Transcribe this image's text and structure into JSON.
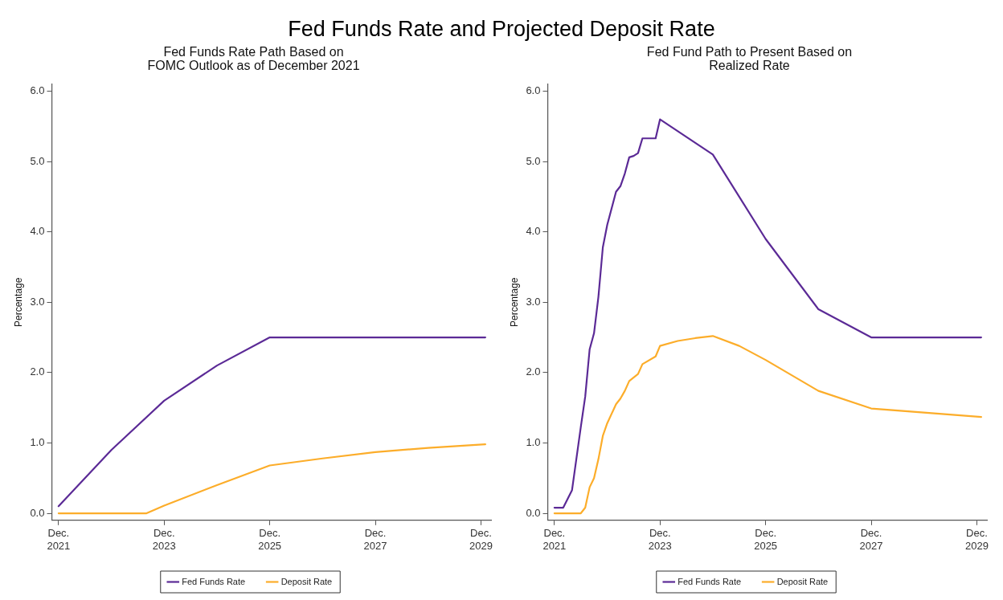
{
  "chart_data": [
    {
      "type": "line",
      "title": "Fed Funds Rate and Projected Deposit Rate",
      "subtitle": "Fed Funds Rate Path Based on FOMC Outlook as of December 2021",
      "ylabel": "Percentage",
      "series": [
        {
          "name": "Fed Funds Rate",
          "color": "#5b2a96",
          "x": [
            "2021-12",
            "2022-12",
            "2023-12",
            "2024-12",
            "2025-12",
            "2030-01"
          ],
          "values": [
            0.1,
            0.9,
            1.6,
            2.1,
            2.5,
            2.5
          ]
        },
        {
          "name": "Deposit Rate",
          "color": "#fcad2a",
          "x": [
            "2021-12",
            "2023-08",
            "2023-12",
            "2024-12",
            "2025-12",
            "2026-12",
            "2027-12",
            "2028-12",
            "2030-01"
          ],
          "values": [
            0,
            0,
            0.11,
            0.4,
            0.68,
            0.78,
            0.87,
            0.93,
            0.98
          ]
        }
      ],
      "xlim": [
        "2021-10-15",
        "2030-02-10"
      ],
      "xticks": [
        {
          "value": "2021-12",
          "label": "Dec. 2021"
        },
        {
          "value": "2023-12",
          "label": "Dec. 2023"
        },
        {
          "value": "2025-12",
          "label": "Dec. 2025"
        },
        {
          "value": "2027-12",
          "label": "Dec. 2027"
        },
        {
          "value": "2029-12",
          "label": "Dec. 2029"
        }
      ],
      "ylim": [
        -0.1,
        6.1
      ],
      "yticks": [
        {
          "value": 0,
          "label": "0.0"
        },
        {
          "value": 1,
          "label": "1.0"
        },
        {
          "value": 2,
          "label": "2.0"
        },
        {
          "value": 3,
          "label": "3.0"
        },
        {
          "value": 4,
          "label": "4.0"
        },
        {
          "value": 5,
          "label": "5.0"
        },
        {
          "value": 6,
          "label": "6.0"
        }
      ],
      "grid": false,
      "legend": "bottom",
      "marker": "none",
      "line_style": "solid"
    },
    {
      "type": "line",
      "subtitle": "Fed Fund Path to Present Based on Realized Rate",
      "ylabel": "Percentage",
      "series": [
        {
          "name": "Fed Funds Rate",
          "color": "#5b2a96",
          "x": [
            "2021-12",
            "2022-02",
            "2022-04",
            "2022-06",
            "2022-07",
            "2022-08",
            "2022-09",
            "2022-10",
            "2022-11",
            "2022-12",
            "2023-02",
            "2023-03",
            "2023-04",
            "2023-05",
            "2023-06",
            "2023-07",
            "2023-08",
            "2023-11",
            "2023-12",
            "2024-12",
            "2025-12",
            "2026-12",
            "2027-12",
            "2030-01"
          ],
          "values": [
            0.08,
            0.08,
            0.33,
            1.23,
            1.66,
            2.33,
            2.56,
            3.08,
            3.78,
            4.1,
            4.57,
            4.65,
            4.83,
            5.06,
            5.08,
            5.12,
            5.33,
            5.33,
            5.6,
            5.1,
            3.9,
            2.9,
            2.5,
            2.5
          ]
        },
        {
          "name": "Deposit Rate",
          "color": "#fcad2a",
          "x": [
            "2021-12",
            "2022-06",
            "2022-07",
            "2022-08",
            "2022-09",
            "2022-10",
            "2022-11",
            "2022-12",
            "2023-02",
            "2023-03",
            "2023-04",
            "2023-05",
            "2023-07",
            "2023-08",
            "2023-11",
            "2023-12",
            "2024-04",
            "2024-08",
            "2024-12",
            "2025-06",
            "2025-12",
            "2026-12",
            "2027-12",
            "2030-01"
          ],
          "values": [
            0,
            0,
            0.08,
            0.37,
            0.5,
            0.77,
            1.1,
            1.28,
            1.55,
            1.63,
            1.74,
            1.88,
            1.98,
            2.12,
            2.23,
            2.38,
            2.45,
            2.49,
            2.52,
            2.38,
            2.18,
            1.74,
            1.49,
            1.37
          ]
        }
      ],
      "xlim": [
        "2021-10-15",
        "2030-02-10"
      ],
      "xticks": [
        {
          "value": "2021-12",
          "label": "Dec. 2021"
        },
        {
          "value": "2023-12",
          "label": "Dec. 2023"
        },
        {
          "value": "2025-12",
          "label": "Dec. 2025"
        },
        {
          "value": "2027-12",
          "label": "Dec. 2027"
        },
        {
          "value": "2029-12",
          "label": "Dec. 2029"
        }
      ],
      "ylim": [
        -0.1,
        6.1
      ],
      "yticks": [
        {
          "value": 0,
          "label": "0.0"
        },
        {
          "value": 1,
          "label": "1.0"
        },
        {
          "value": 2,
          "label": "2.0"
        },
        {
          "value": 3,
          "label": "3.0"
        },
        {
          "value": 4,
          "label": "4.0"
        },
        {
          "value": 5,
          "label": "5.0"
        },
        {
          "value": 6,
          "label": "6.0"
        }
      ],
      "grid": false,
      "legend": "bottom",
      "marker": "none",
      "line_style": "solid"
    }
  ]
}
